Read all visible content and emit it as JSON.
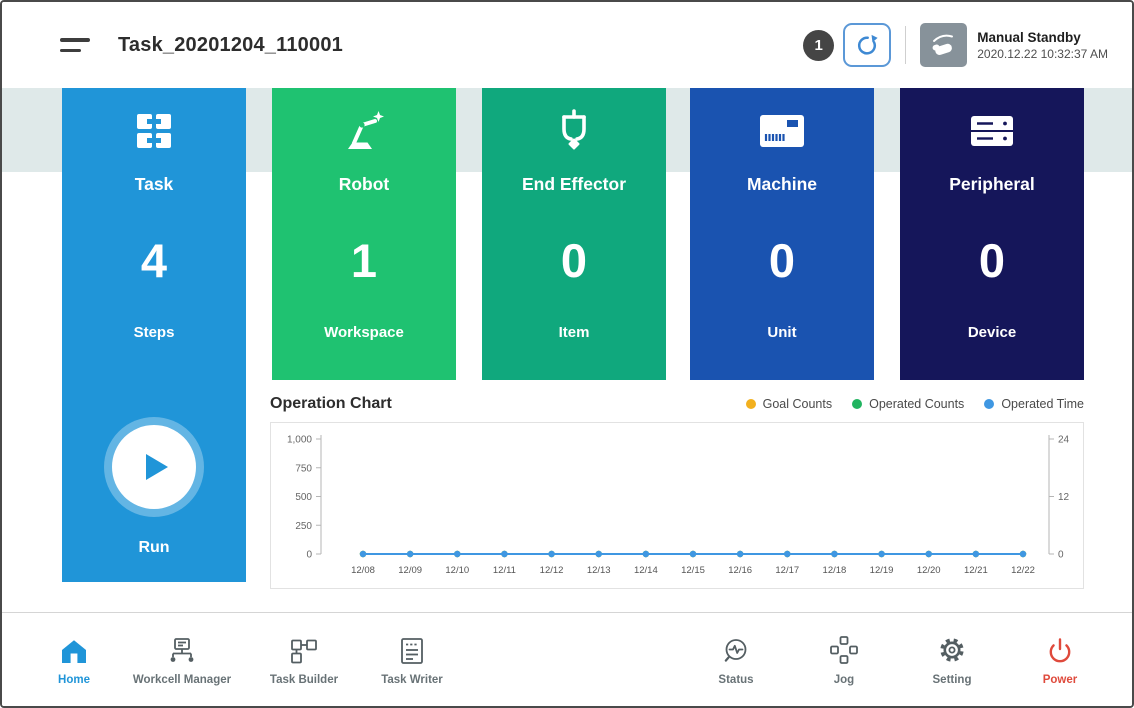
{
  "colors": {
    "accent_blue": "#2095d8",
    "power_red": "#df4a3c",
    "teal_band": "#dfe9e9"
  },
  "header": {
    "title": "Task_20201204_110001",
    "badge_count": "1",
    "mode_label": "Manual Standby",
    "timestamp": "2020.12.22 10:32:37 AM",
    "icons": {
      "menu": "hamburger-menu-icon",
      "refresh": "refresh-icon",
      "hand": "manual-hand-icon"
    }
  },
  "task_card": {
    "title": "Task",
    "value": "4",
    "unit": "Steps",
    "run_label": "Run",
    "color": "#2095d8",
    "icon": "task-blocks-icon"
  },
  "cards": [
    {
      "title": "Robot",
      "value": "1",
      "unit": "Workspace",
      "color": "#1fc271",
      "icon": "robot-arm-icon"
    },
    {
      "title": "End Effector",
      "value": "0",
      "unit": "Item",
      "color": "#10a87d",
      "icon": "gripper-icon"
    },
    {
      "title": "Machine",
      "value": "0",
      "unit": "Unit",
      "color": "#1a53b0",
      "icon": "machine-icon"
    },
    {
      "title": "Peripheral",
      "value": "0",
      "unit": "Device",
      "color": "#15165a",
      "icon": "peripheral-icon"
    }
  ],
  "chart": {
    "title": "Operation Chart",
    "legend": [
      {
        "label": "Goal Counts",
        "color": "#f2b01e"
      },
      {
        "label": "Operated Counts",
        "color": "#21b460"
      },
      {
        "label": "Operated Time",
        "color": "#3f97e2"
      }
    ]
  },
  "chart_data": {
    "type": "line",
    "title": "Operation Chart",
    "grid": false,
    "legend_position": "top-right",
    "x": [
      "12/08",
      "12/09",
      "12/10",
      "12/11",
      "12/12",
      "12/13",
      "12/14",
      "12/15",
      "12/16",
      "12/17",
      "12/18",
      "12/19",
      "12/20",
      "12/21",
      "12/22"
    ],
    "series": [
      {
        "name": "Goal Counts",
        "axis": "left",
        "color": "#f2b01e",
        "values": [
          0,
          0,
          0,
          0,
          0,
          0,
          0,
          0,
          0,
          0,
          0,
          0,
          0,
          0,
          0
        ]
      },
      {
        "name": "Operated Counts",
        "axis": "left",
        "color": "#21b460",
        "values": [
          0,
          0,
          0,
          0,
          0,
          0,
          0,
          0,
          0,
          0,
          0,
          0,
          0,
          0,
          0
        ]
      },
      {
        "name": "Operated Time",
        "axis": "right",
        "color": "#3f97e2",
        "values": [
          0,
          0,
          0,
          0,
          0,
          0,
          0,
          0,
          0,
          0,
          0,
          0,
          0,
          0,
          0
        ]
      }
    ],
    "left_axis": {
      "max": 1000,
      "ticks": [
        {
          "label": "0",
          "value": 0
        },
        {
          "label": "250",
          "value": 250
        },
        {
          "label": "500",
          "value": 500
        },
        {
          "label": "750",
          "value": 750
        },
        {
          "label": "1,000",
          "value": 1000
        }
      ]
    },
    "right_axis": {
      "max": 24,
      "ticks": [
        {
          "label": "0",
          "value": 0
        },
        {
          "label": "12",
          "value": 12
        },
        {
          "label": "24",
          "value": 24
        }
      ]
    }
  },
  "nav": {
    "items": [
      {
        "label": "Home",
        "icon": "home-icon",
        "active": true
      },
      {
        "label": "Workcell Manager",
        "icon": "workcell-manager-icon",
        "active": false
      },
      {
        "label": "Task Builder",
        "icon": "task-builder-icon",
        "active": false
      },
      {
        "label": "Task Writer",
        "icon": "task-writer-icon",
        "active": false
      },
      {
        "label": "Status",
        "icon": "status-icon",
        "active": false
      },
      {
        "label": "Jog",
        "icon": "jog-icon",
        "active": false
      },
      {
        "label": "Setting",
        "icon": "setting-icon",
        "active": false
      },
      {
        "label": "Power",
        "icon": "power-icon",
        "active": false
      }
    ]
  }
}
